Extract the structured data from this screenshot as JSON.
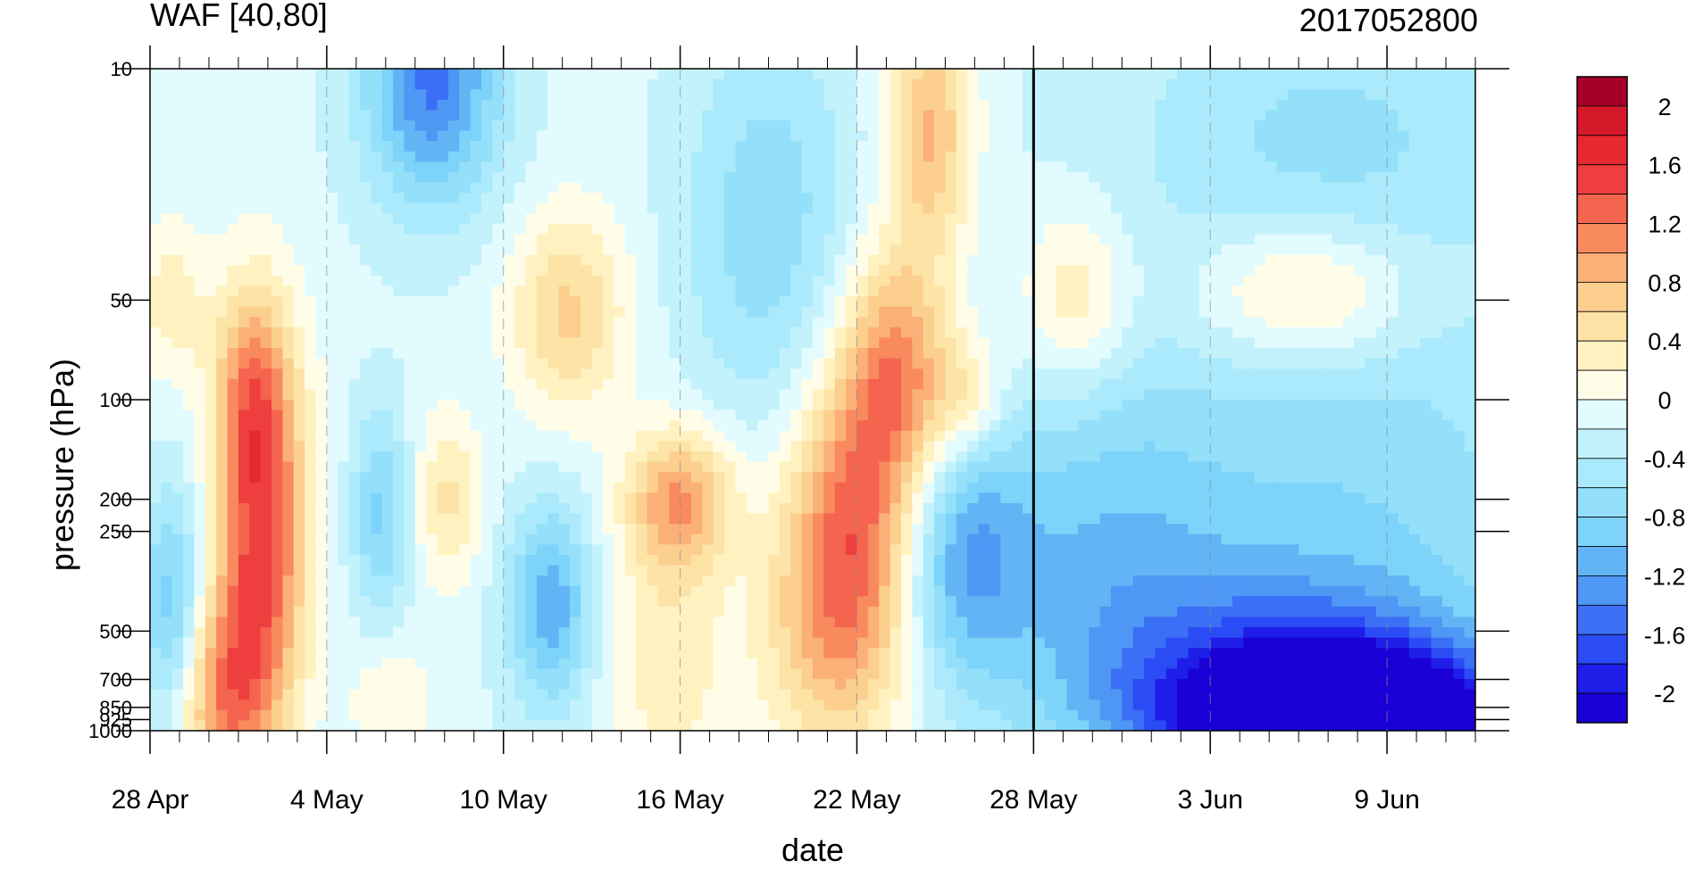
{
  "chart_data": {
    "type": "heatmap",
    "title": "WAF [40,80]",
    "right_title": "2017052800",
    "xlabel": "date",
    "ylabel": "pressure (hPa)",
    "x_tick_labels": [
      "28 Apr",
      "4 May",
      "10 May",
      "16 May",
      "22 May",
      "28 May",
      "3 Jun",
      "9 Jun"
    ],
    "x_range_days": [
      0,
      45
    ],
    "x_tick_days": [
      0,
      6,
      12,
      18,
      24,
      30,
      36,
      42
    ],
    "y_ticks": [
      10,
      50,
      100,
      200,
      250,
      500,
      700,
      850,
      925,
      1000
    ],
    "y_tick_labels": [
      "10",
      "50",
      "100",
      "200",
      "250",
      "500",
      "700",
      "850",
      "925",
      "1000"
    ],
    "y_scale": "log (inverted)",
    "y_range": [
      1000,
      10
    ],
    "marker_line_date": "28 May",
    "colorbar": {
      "levels": [
        -2.2,
        -2.0,
        -1.8,
        -1.6,
        -1.4,
        -1.2,
        -1.0,
        -0.8,
        -0.6,
        -0.4,
        -0.2,
        0,
        0.2,
        0.4,
        0.6,
        0.8,
        1.0,
        1.2,
        1.4,
        1.6,
        1.8,
        2.0,
        2.2
      ],
      "labels": [
        "2",
        "1.6",
        "1.2",
        "0.8",
        "0.4",
        "0",
        "-0.4",
        "-0.8",
        "-1.2",
        "-1.6",
        "-2"
      ],
      "colors": [
        "#1a00d6",
        "#1f1ee8",
        "#2b4bf5",
        "#3b6ff5",
        "#4e97f5",
        "#63b4f5",
        "#7dd3fa",
        "#94e0fb",
        "#aaeafc",
        "#c3f2fc",
        "#e2fbfe",
        "#fffde8",
        "#fff2c0",
        "#fde3a6",
        "#fccf8e",
        "#fbb077",
        "#f98a5e",
        "#f4644e",
        "#ef3e3e",
        "#e62830",
        "#d5182a",
        "#a50026"
      ]
    },
    "features": [
      {
        "name": "positive-plume-early-May",
        "peak": 1.8,
        "center_date": "2 May",
        "pressure_range": [
          80,
          1000
        ]
      },
      {
        "name": "positive-plume-mid-May",
        "peak": 1.0,
        "center_date": "16 May",
        "pressure_range": [
          130,
          1000
        ]
      },
      {
        "name": "positive-plume-late-May",
        "peak": 1.6,
        "center_date": "24 May",
        "pressure_range": [
          10,
          850
        ]
      },
      {
        "name": "negative-core-June-lower",
        "peak": -2.2,
        "center_date": "10 Jun",
        "pressure_range": [
          500,
          1000
        ]
      },
      {
        "name": "negative-core-stratosphere-early-May",
        "peak": -1.2,
        "center_date": "8 May",
        "pressure_range": [
          10,
          30
        ]
      }
    ]
  }
}
